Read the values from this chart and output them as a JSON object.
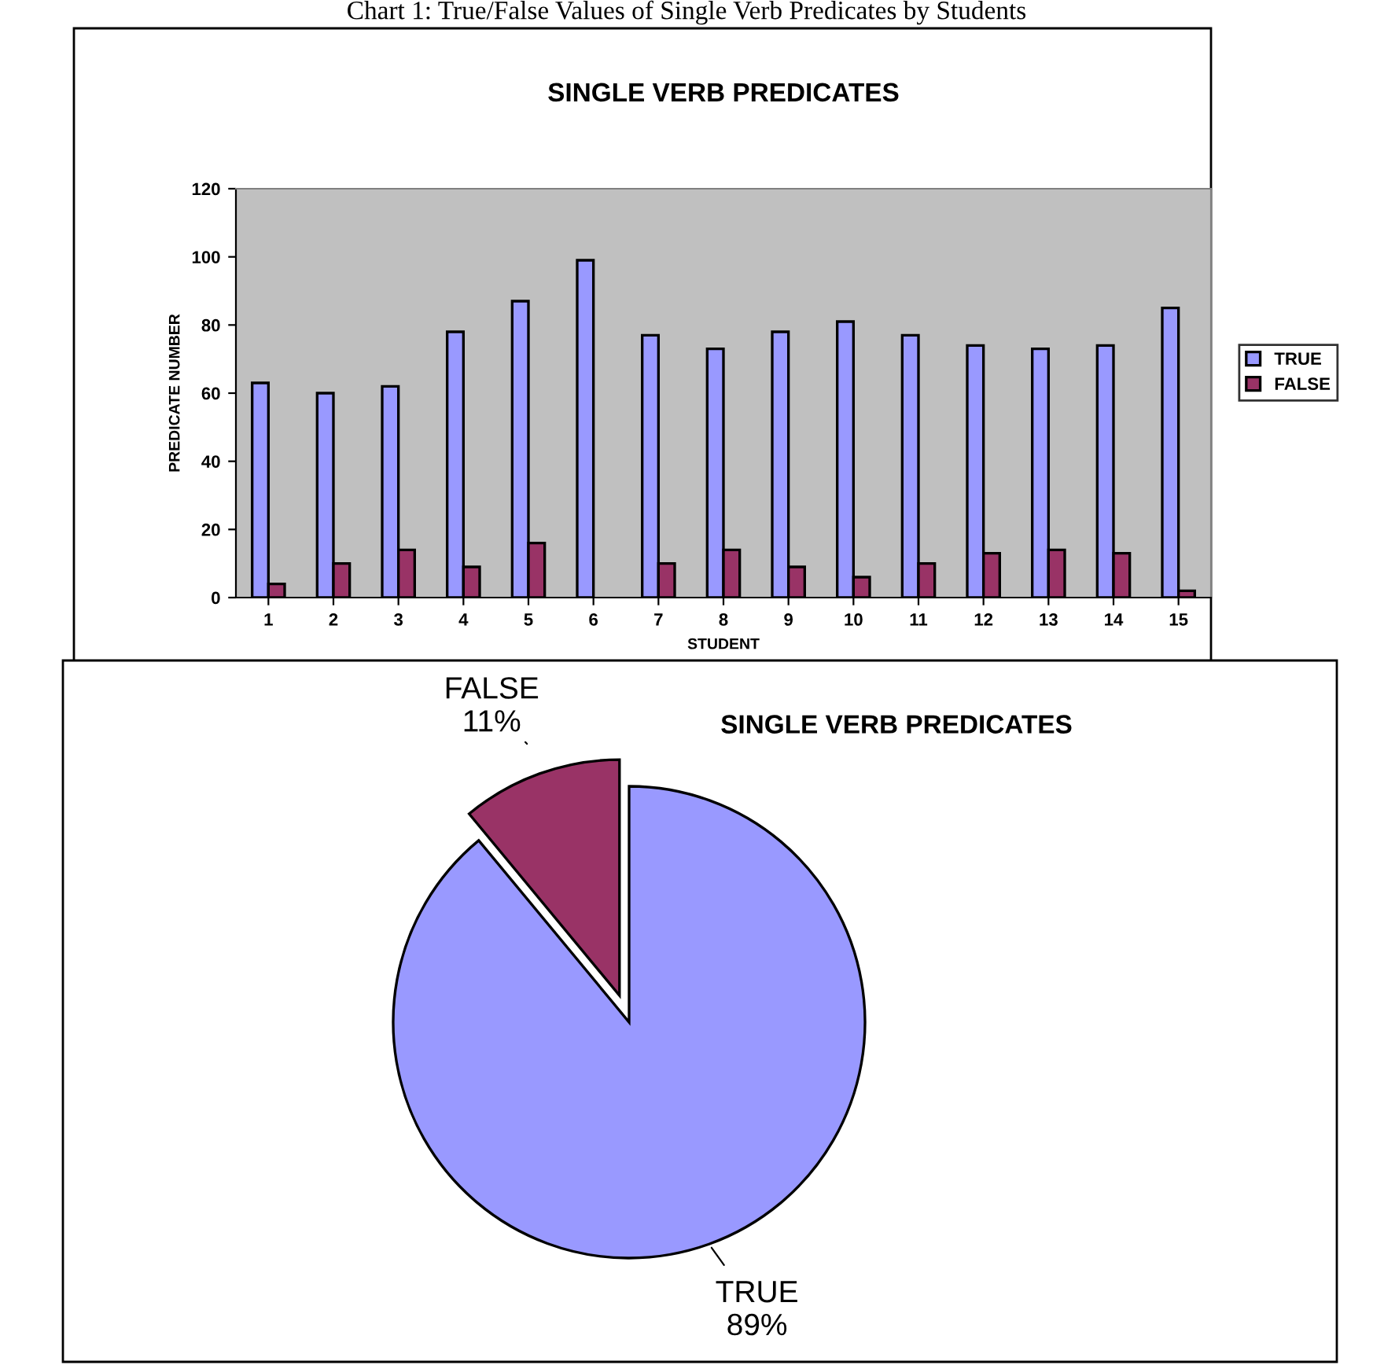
{
  "chart_data": [
    {
      "type": "bar",
      "title": "SINGLE VERB PREDICATES",
      "xlabel": "STUDENT",
      "ylabel": "PREDICATE NUMBER",
      "annotations": [
        "Chart 1: True/False Values of Single Verb Predicates by Students"
      ],
      "categories": [
        "1",
        "2",
        "3",
        "4",
        "5",
        "6",
        "7",
        "8",
        "9",
        "10",
        "11",
        "12",
        "13",
        "14",
        "15"
      ],
      "series": [
        {
          "name": "TRUE",
          "color": "#9999ff",
          "values": [
            63,
            60,
            62,
            78,
            87,
            99,
            77,
            73,
            78,
            81,
            77,
            74,
            73,
            74,
            85
          ]
        },
        {
          "name": "FALSE",
          "color": "#993366",
          "values": [
            4,
            10,
            14,
            9,
            16,
            null,
            10,
            14,
            9,
            6,
            10,
            13,
            14,
            13,
            2
          ]
        }
      ],
      "ylim": [
        0,
        120
      ],
      "yticks": [
        0,
        20,
        40,
        60,
        80,
        100,
        120
      ],
      "grid": false,
      "legend": "right"
    },
    {
      "type": "pie",
      "title": "SINGLE VERB PREDICATES",
      "categories": [
        "TRUE",
        "FALSE"
      ],
      "values": [
        89,
        11
      ],
      "value_labels": [
        "89%",
        "11%"
      ],
      "colors": [
        "#9999ff",
        "#993366"
      ]
    }
  ]
}
